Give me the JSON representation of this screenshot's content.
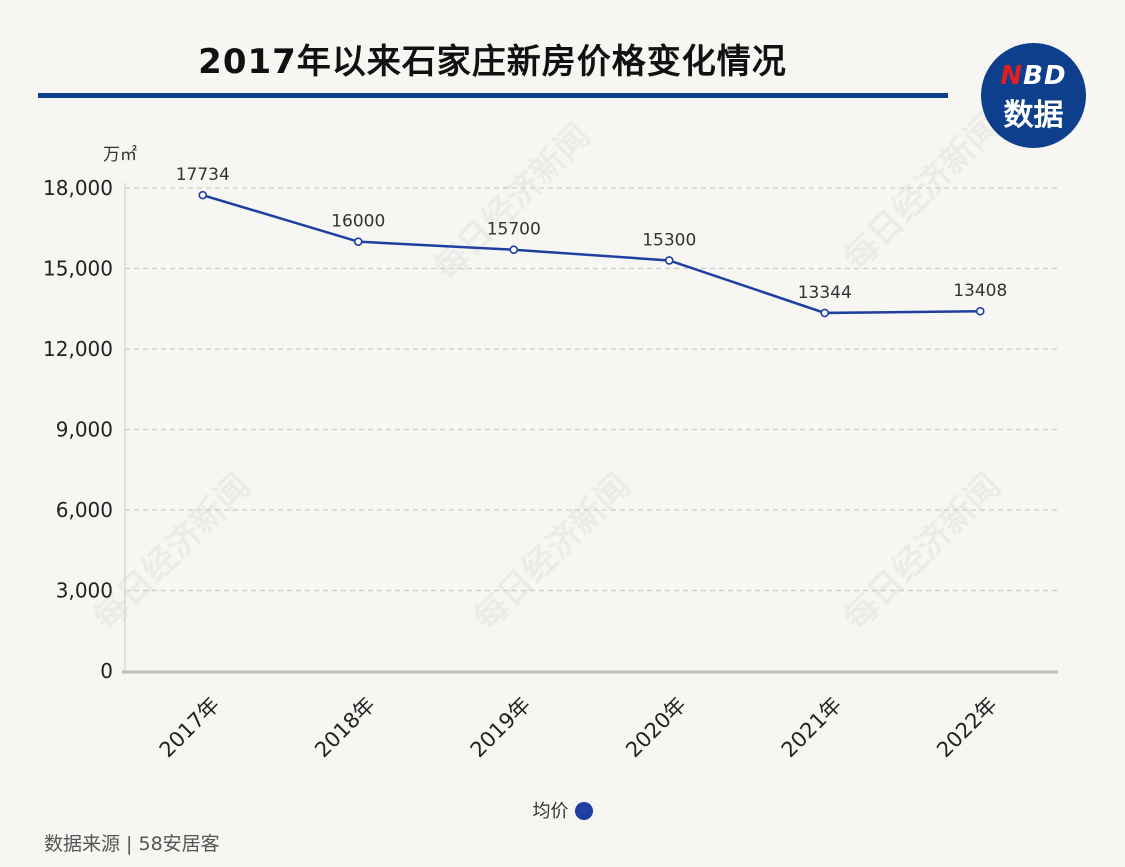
{
  "title": "2017年以来石家庄新房价格变化情况",
  "logo": {
    "line1_n": "N",
    "line1_rest": "BD",
    "line2": "数据"
  },
  "watermark": "每日经济新闻",
  "unit": "万㎡",
  "source": "数据来源 | 58安居客",
  "colors": {
    "line": "#1d3fa0",
    "title_bar": "#0e3f8c",
    "grid": "#cccccc"
  },
  "chart_data": {
    "type": "line",
    "categories": [
      "2017年",
      "2018年",
      "2019年",
      "2020年",
      "2021年",
      "2022年"
    ],
    "series": [
      {
        "name": "均价",
        "values": [
          17734,
          16000,
          15700,
          15300,
          13344,
          13408
        ]
      }
    ],
    "ylabel": "万㎡",
    "ylim": [
      0,
      18000
    ],
    "yticks": [
      0,
      3000,
      6000,
      9000,
      12000,
      15000,
      18000
    ],
    "ytick_labels": [
      "0",
      "3,000",
      "6,000",
      "9,000",
      "12,000",
      "15,000",
      "18,000"
    ],
    "data_labels": [
      "17734",
      "16000",
      "15700",
      "15300",
      "13344",
      "13408"
    ],
    "grid": true,
    "legend": "bottom"
  }
}
